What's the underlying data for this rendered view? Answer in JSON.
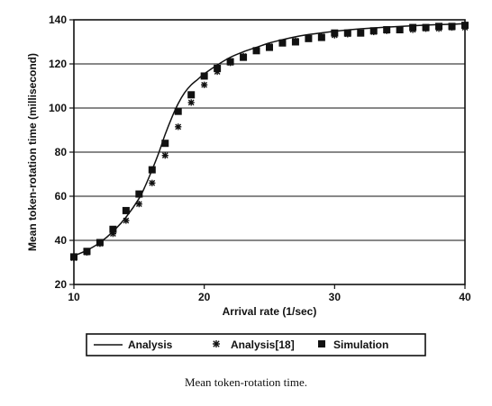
{
  "chart_data": {
    "type": "line",
    "xlabel": "Arrival rate (1/sec)",
    "ylabel": "Mean token-rotation time (millisecond)",
    "xlim": [
      10,
      40
    ],
    "ylim": [
      20,
      140
    ],
    "xticks": [
      10,
      20,
      30,
      40
    ],
    "yticks": [
      20,
      40,
      60,
      80,
      100,
      120,
      140
    ],
    "grid": "horizontal",
    "legend_position": "bottom",
    "series": [
      {
        "name": "Analysis",
        "style": "line",
        "x": [
          10,
          11,
          12,
          13,
          14,
          15,
          15.5,
          16,
          16.5,
          17,
          17.5,
          18,
          18.5,
          19,
          19.5,
          20,
          21,
          22,
          23,
          24,
          25,
          26,
          27,
          28,
          29,
          30,
          31,
          32,
          33,
          34,
          35,
          36,
          37,
          38,
          39,
          40
        ],
        "y": [
          33,
          35.5,
          39,
          44,
          50.5,
          59,
          65,
          72,
          79.5,
          88,
          95.5,
          102,
          107,
          110.5,
          113,
          115.5,
          119.5,
          123,
          125.5,
          127.5,
          129.5,
          131,
          132.3,
          133.3,
          134.1,
          134.8,
          135.4,
          135.9,
          136.3,
          136.7,
          137,
          137.3,
          137.6,
          137.8,
          138,
          138.2
        ]
      },
      {
        "name": "Analysis[18]",
        "style": "star",
        "x": [
          10,
          11,
          12,
          13,
          14,
          15,
          16,
          17,
          18,
          19,
          20,
          21,
          22,
          23,
          24,
          25,
          26,
          27,
          28,
          29,
          30,
          31,
          32,
          33,
          34,
          35,
          36,
          37,
          38,
          39,
          40
        ],
        "y": [
          32,
          34.5,
          38.5,
          43,
          49,
          56.5,
          66,
          78.5,
          91.5,
          102.5,
          110.5,
          116.5,
          120.5,
          123.5,
          126,
          128,
          129.5,
          130.5,
          131.5,
          132.5,
          133,
          133.5,
          134,
          134.5,
          135,
          135.5,
          135.5,
          136,
          136,
          136.5,
          136.5
        ]
      },
      {
        "name": "Simulation",
        "style": "square",
        "x": [
          10,
          11,
          12,
          13,
          14,
          15,
          16,
          17,
          18,
          19,
          20,
          21,
          22,
          23,
          24,
          25,
          26,
          27,
          28,
          29,
          30,
          31,
          32,
          33,
          34,
          35,
          36,
          37,
          38,
          39,
          40
        ],
        "y": [
          32.5,
          35,
          39,
          45,
          53.5,
          61,
          72,
          84,
          98.5,
          106,
          114.5,
          118,
          121,
          123,
          126,
          127.5,
          129.5,
          130,
          131.5,
          132,
          134,
          134,
          134,
          135,
          135.5,
          135.5,
          136.5,
          136.5,
          137,
          137,
          137.5
        ]
      }
    ]
  },
  "caption": "Mean token-rotation time."
}
